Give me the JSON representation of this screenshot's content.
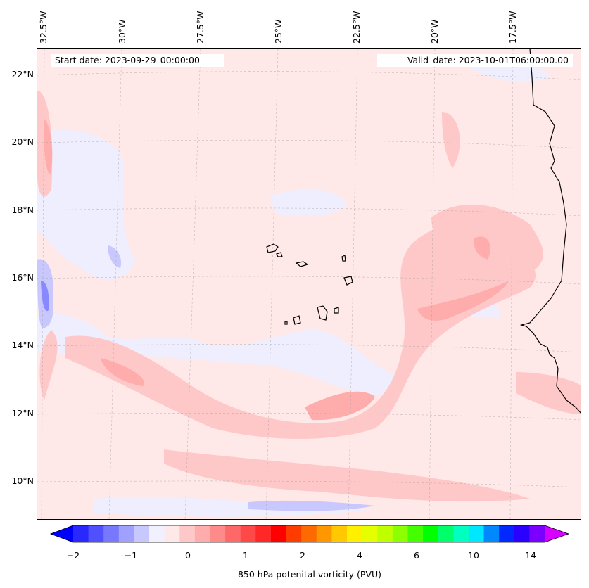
{
  "map": {
    "start_date": "Start date: 2023-09-29_00:00:00",
    "valid_date": "Valid_date: 2023-10-01T06:00:00.00",
    "lon_labels": [
      "32.5°W",
      "30°W",
      "27.5°W",
      "25°W",
      "22.5°W",
      "20°W",
      "17.5°W"
    ],
    "lat_labels": [
      "22°N",
      "20°N",
      "18°N",
      "16°N",
      "14°N",
      "12°N",
      "10°N"
    ],
    "extent": {
      "lon_min": -32.6,
      "lon_max": -15.2,
      "lat_min": 8.9,
      "lat_max": 22.8
    },
    "colors": {
      "background": "#ffe8e8",
      "coastline": "#000000"
    }
  },
  "colorbar": {
    "label": "850 hPa potenital vorticity (PVU)",
    "tick_labels": [
      "−2",
      "−1",
      "0",
      "1",
      "2",
      "4",
      "6",
      "10",
      "14"
    ],
    "colors": [
      "#0000ff",
      "#2828ff",
      "#5050ff",
      "#7878ff",
      "#a0a0ff",
      "#c8c8ff",
      "#f0f0ff",
      "#ffe8e8",
      "#ffc8c8",
      "#ffacac",
      "#ff8a8a",
      "#ff6868",
      "#ff4848",
      "#ff2828",
      "#ff0000",
      "#ff3c00",
      "#ff6a00",
      "#ff9800",
      "#ffc800",
      "#fff000",
      "#e6ff00",
      "#c0ff00",
      "#8cff00",
      "#44ff00",
      "#00ff00",
      "#00ff6a",
      "#00ffc0",
      "#00e8ff",
      "#0088ff",
      "#0028ff",
      "#2a00ff",
      "#7a00ff",
      "#d600ff"
    ]
  }
}
